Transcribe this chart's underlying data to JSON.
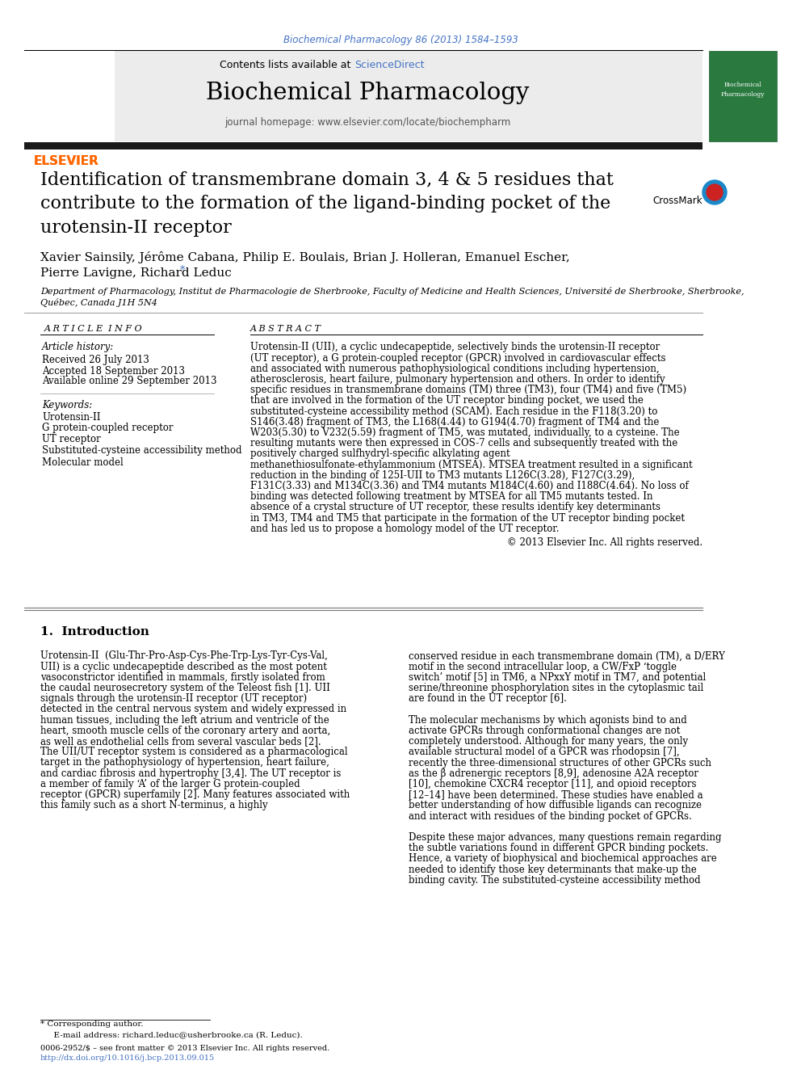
{
  "bg_color": "#ffffff",
  "top_citation": "Biochemical Pharmacology 86 (2013) 1584–1593",
  "top_citation_color": "#4472c4",
  "journal_header_bg": "#ececec",
  "contents_text": "Contents lists available at ",
  "sciencedirect_text": "ScienceDirect",
  "sciencedirect_color": "#4472c4",
  "journal_name": "Biochemical Pharmacology",
  "journal_homepage": "journal homepage: www.elsevier.com/locate/biochempharm",
  "header_bar_color": "#1a1a1a",
  "elsevier_color": "#ff6600",
  "article_title_line1": "Identification of transmembrane domain 3, 4 & 5 residues that",
  "article_title_line2": "contribute to the formation of the ligand-binding pocket of the",
  "article_title_line3": "urotensin-II receptor",
  "authors": "Xavier Sainsily, Jérôme Cabana, Philip E. Boulais, Brian J. Holleran, Emanuel Escher,",
  "authors_line2": "Pierre Lavigne, Richard Leduc",
  "asterisk_color": "#4472c4",
  "affil_line1": "Department of Pharmacology, Institut de Pharmacologie de Sherbrooke, Faculty of Medicine and Health Sciences, Université de Sherbrooke, Sherbrooke,",
  "affil_line2": "Québec, Canada J1H 5N4",
  "article_info_header": "A R T I C L E  I N F O",
  "abstract_header": "A B S T R A C T",
  "article_history_label": "Article history:",
  "received": "Received 26 July 2013",
  "accepted": "Accepted 18 September 2013",
  "available": "Available online 29 September 2013",
  "keywords_label": "Keywords:",
  "keywords": [
    "Urotensin-II",
    "G protein-coupled receptor",
    "UT receptor",
    "Substituted-cysteine accessibility method",
    "Molecular model"
  ],
  "abstract_text": "Urotensin-II (UII), a cyclic undecapeptide, selectively binds the urotensin-II receptor (UT receptor), a G protein-coupled receptor (GPCR) involved in cardiovascular effects and associated with numerous pathophysiological conditions including hypertension, atherosclerosis, heart failure, pulmonary hypertension and others. In order to identify specific residues in transmembrane domains (TM) three (TM3), four (TM4) and five (TM5) that are involved in the formation of the UT receptor binding pocket, we used the substituted-cysteine accessibility method (SCAM). Each residue in the F118(3.20) to S146(3.48) fragment of TM3, the L168(4.44) to G194(4.70) fragment of TM4 and the W203(5.30) to V232(5.59) fragment of TM5, was mutated, individually, to a cysteine. The resulting mutants were then expressed in COS-7 cells and subsequently treated with the positively charged sulfhydryl-specific alkylating agent methanethiosulfonate-ethylammonium (MTSEA). MTSEA treatment resulted in a significant reduction in the binding of 125I-UII to TM3 mutants L126C(3.28), F127C(3.29), F131C(3.33) and M134C(3.36) and TM4 mutants M184C(4.60) and I188C(4.64). No loss of binding was detected following treatment by MTSEA for all TM5 mutants tested. In absence of a crystal structure of UT receptor, these results identify key determinants in TM3, TM4 and TM5 that participate in the formation of the UT receptor binding pocket and has led us to propose a homology model of the UT receptor.",
  "copyright": "© 2013 Elsevier Inc. All rights reserved.",
  "intro_header": "1.  Introduction",
  "intro_col1": "Urotensin-II  (Glu-Thr-Pro-Asp-Cys-Phe-Trp-Lys-Tyr-Cys-Val, UII) is a cyclic undecapeptide described as the most potent vasoconstrictor identified in mammals, firstly isolated from the caudal neurosecretory system of the Teleost fish [1]. UII signals through the urotensin-II receptor (UT receptor) detected in the central nervous system and widely expressed in human tissues, including the left atrium and ventricle of the heart, smooth muscle cells of the coronary artery and aorta, as well as endothelial cells from several vascular beds [2]. The UII/UT receptor system is considered as a pharmacological target in the pathophysiology of hypertension, heart failure, and cardiac fibrosis and hypertrophy [3,4]. The UT receptor is a member of family ‘A’ of the larger G protein-coupled receptor (GPCR) superfamily [2]. Many features associated with this family such as a short N-terminus, a highly",
  "intro_col2": "conserved residue in each transmembrane domain (TM), a D/ERY motif in the second intracellular loop, a CW/FxP ‘toggle switch’ motif [5] in TM6, a NPxxY motif in TM7, and potential serine/threonine phosphorylation sites in the cytoplasmic tail are found in the UT receptor [6].\n\nThe molecular mechanisms by which agonists bind to and activate GPCRs through conformational changes are not completely understood. Although for many years, the only available structural model of a GPCR was rhodopsin [7], recently the three-dimensional structures of other GPCRs such as the β adrenergic receptors [8,9], adenosine A2A receptor [10], chemokine CXCR4 receptor [11], and opioid receptors [12–14] have been determined. These studies have enabled a better understanding of how diffusible ligands can recognize and interact with residues of the binding pocket of GPCRs.\n\nDespite these major advances, many questions remain regarding the subtle variations found in different GPCR binding pockets. Hence, a variety of biophysical and biochemical approaches are needed to identify those key determinants that make-up the binding cavity. The substituted-cysteine accessibility method",
  "footnote_star": "* Corresponding author.",
  "footnote_email": "  E-mail address: richard.leduc@usherbrooke.ca (R. Leduc).",
  "bottom_line1": "0006-2952/$ – see front matter © 2013 Elsevier Inc. All rights reserved.",
  "bottom_line2": "http://dx.doi.org/10.1016/j.bcp.2013.09.015",
  "link_color": "#4472c4"
}
